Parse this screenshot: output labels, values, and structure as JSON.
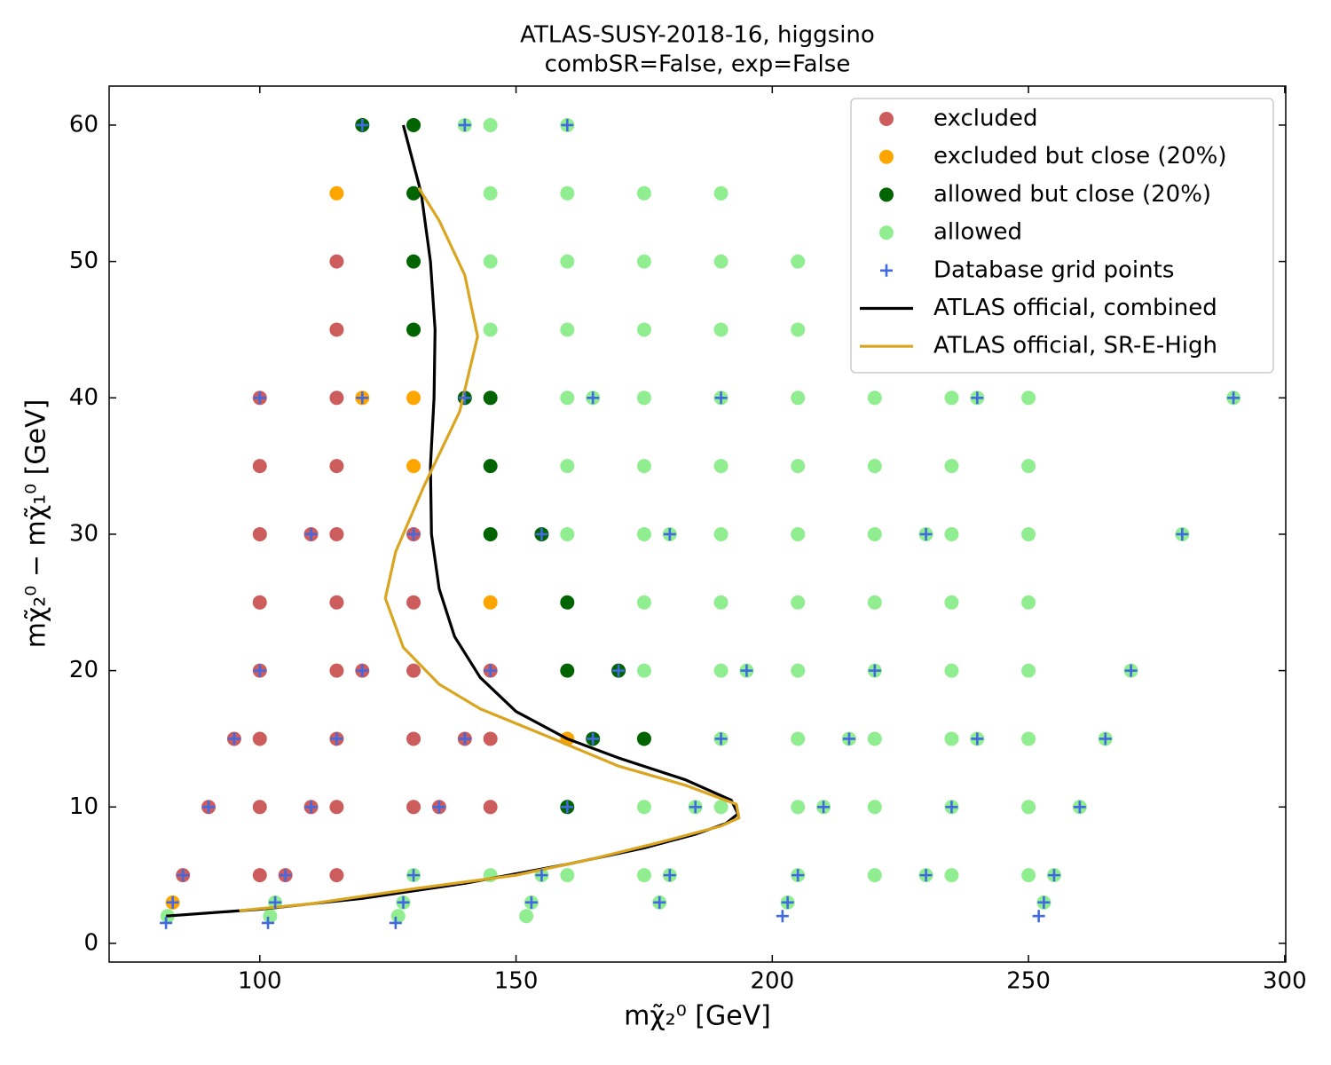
{
  "chart_data": {
    "type": "scatter",
    "title": [
      "ATLAS-SUSY-2018-16, higgsino",
      "combSR=False, exp=False"
    ],
    "xlabel": "mχ̃₂⁰ [GeV]",
    "ylabel": "mχ̃₂⁰ − mχ̃₁⁰ [GeV]",
    "xlim": [
      70.6,
      300.2
    ],
    "ylim": [
      -1.37,
      62.86
    ],
    "xticks": [
      100,
      150,
      200,
      250,
      300
    ],
    "yticks": [
      0,
      10,
      20,
      30,
      40,
      50,
      60
    ],
    "legend": "upper right",
    "series": [
      {
        "name": "excluded",
        "color": "#cd5c5c",
        "style": "dot",
        "x": [
          115,
          115,
          100,
          115,
          100,
          115,
          100,
          110,
          115,
          130,
          100,
          115,
          130,
          100,
          115,
          120,
          130,
          145,
          95,
          100,
          115,
          130,
          140,
          145,
          90,
          100,
          110,
          115,
          130,
          135,
          145,
          85,
          100,
          105,
          115
        ],
        "y": [
          50,
          45,
          40,
          40,
          35,
          35,
          30,
          30,
          30,
          30,
          25,
          25,
          25,
          20,
          20,
          20,
          20,
          20,
          15,
          15,
          15,
          15,
          15,
          15,
          10,
          10,
          10,
          10,
          10,
          10,
          10,
          5,
          5,
          5,
          5
        ]
      },
      {
        "name": "excluded but close (20%)",
        "color": "#ffa500",
        "style": "dot",
        "x": [
          115,
          120,
          130,
          130,
          145,
          160,
          83
        ],
        "y": [
          55,
          40,
          40,
          35,
          25,
          15,
          3
        ]
      },
      {
        "name": "allowed but close (20%)",
        "color": "#006400",
        "style": "dot",
        "x": [
          120,
          130,
          130,
          130,
          130,
          140,
          145,
          145,
          145,
          155,
          160,
          160,
          170,
          165,
          175,
          160
        ],
        "y": [
          60,
          60,
          55,
          50,
          45,
          40,
          40,
          35,
          30,
          30,
          25,
          20,
          20,
          15,
          15,
          10
        ]
      },
      {
        "name": "allowed",
        "color": "#90ee90",
        "style": "dot",
        "x": [
          140,
          145,
          160,
          145,
          160,
          175,
          190,
          145,
          160,
          175,
          190,
          205,
          145,
          160,
          175,
          190,
          205,
          160,
          165,
          175,
          190,
          205,
          220,
          235,
          240,
          250,
          290,
          160,
          175,
          190,
          205,
          220,
          235,
          250,
          160,
          175,
          180,
          190,
          205,
          220,
          230,
          235,
          250,
          280,
          175,
          190,
          205,
          220,
          235,
          250,
          175,
          190,
          195,
          205,
          220,
          235,
          250,
          270,
          190,
          205,
          215,
          220,
          235,
          240,
          250,
          265,
          175,
          185,
          190,
          205,
          210,
          220,
          235,
          250,
          260,
          130,
          145,
          155,
          160,
          175,
          180,
          205,
          220,
          230,
          235,
          250,
          255,
          103,
          128,
          153,
          178,
          203,
          253,
          82,
          102,
          127,
          152
        ],
        "y": [
          60,
          60,
          60,
          55,
          55,
          55,
          55,
          50,
          50,
          50,
          50,
          50,
          45,
          45,
          45,
          45,
          45,
          40,
          40,
          40,
          40,
          40,
          40,
          40,
          40,
          40,
          40,
          35,
          35,
          35,
          35,
          35,
          35,
          35,
          30,
          30,
          30,
          30,
          30,
          30,
          30,
          30,
          30,
          30,
          25,
          25,
          25,
          25,
          25,
          25,
          20,
          20,
          20,
          20,
          20,
          20,
          20,
          20,
          15,
          15,
          15,
          15,
          15,
          15,
          15,
          15,
          10,
          10,
          10,
          10,
          10,
          10,
          10,
          10,
          10,
          5,
          5,
          5,
          5,
          5,
          5,
          5,
          5,
          5,
          5,
          5,
          5,
          3,
          3,
          3,
          3,
          3,
          3,
          2,
          2,
          2,
          2
        ]
      },
      {
        "name": "Database grid points",
        "color": "#4169e1",
        "style": "plus",
        "x": [
          120,
          140,
          160,
          100,
          120,
          140,
          165,
          190,
          240,
          290,
          110,
          130,
          155,
          180,
          230,
          280,
          100,
          120,
          145,
          170,
          195,
          220,
          270,
          95,
          115,
          140,
          165,
          190,
          215,
          240,
          265,
          90,
          110,
          135,
          160,
          185,
          210,
          235,
          260,
          85,
          105,
          130,
          155,
          180,
          205,
          230,
          255,
          83,
          103,
          128,
          153,
          178,
          203,
          253,
          202,
          252,
          81.7,
          101.6,
          126.5
        ],
        "y": [
          60,
          60,
          60,
          40,
          40,
          40,
          40,
          40,
          40,
          40,
          30,
          30,
          30,
          30,
          30,
          30,
          20,
          20,
          20,
          20,
          20,
          20,
          20,
          15,
          15,
          15,
          15,
          15,
          15,
          15,
          15,
          10,
          10,
          10,
          10,
          10,
          10,
          10,
          10,
          5,
          5,
          5,
          5,
          5,
          5,
          5,
          5,
          3,
          3,
          3,
          3,
          3,
          3,
          3,
          2,
          2,
          1.5,
          1.5,
          1.5
        ]
      },
      {
        "name": "ATLAS official, combined",
        "color": "#000000",
        "style": "line",
        "x": [
          81.7,
          100,
          120,
          140,
          160,
          175,
          185,
          191,
          193.3,
          192,
          183,
          170,
          160,
          150,
          143,
          138,
          135,
          133.5,
          133.3,
          134,
          134.2,
          133.3,
          131.5,
          128
        ],
        "y": [
          2,
          2.5,
          3.3,
          4.4,
          5.8,
          7,
          8,
          8.8,
          9.5,
          10.5,
          12,
          13.6,
          15,
          17,
          19.5,
          22.5,
          26,
          30,
          35,
          40,
          45,
          50,
          55,
          60
        ]
      },
      {
        "name": "ATLAS official, SR-E-High",
        "color": "#daa520",
        "style": "line",
        "x": [
          96,
          110,
          130,
          150,
          165,
          178,
          190,
          193.5,
          193,
          183,
          170,
          156,
          143,
          135,
          128,
          124.5,
          126.5,
          132,
          139,
          142.5,
          140,
          135,
          131
        ],
        "y": [
          2.4,
          2.9,
          4,
          5,
          6.2,
          7.4,
          8.6,
          9.2,
          10.2,
          11.6,
          13,
          15.2,
          17.2,
          19,
          21.7,
          25.3,
          28.7,
          33.5,
          39,
          44.5,
          49,
          53,
          55.4
        ]
      }
    ]
  }
}
